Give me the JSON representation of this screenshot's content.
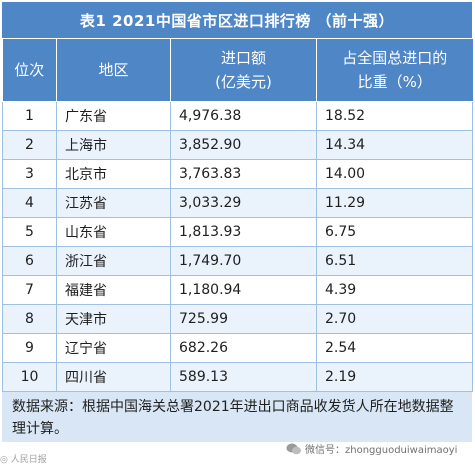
{
  "title": "表1   2021中国省市区进口排行榜 （前十强）",
  "headers": {
    "rank": "位次",
    "region": "地区",
    "import_line1": "进口额",
    "import_line2": "(亿美元)",
    "share_line1": "占全国总进口的",
    "share_line2": "比重（%）"
  },
  "rows": [
    {
      "rank": "1",
      "region": "广东省",
      "imports": "4,976.38",
      "share": "18.52"
    },
    {
      "rank": "2",
      "region": "上海市",
      "imports": "3,852.90",
      "share": "14.34"
    },
    {
      "rank": "3",
      "region": "北京市",
      "imports": "3,763.83",
      "share": "14.00"
    },
    {
      "rank": "4",
      "region": "江苏省",
      "imports": "3,033.29",
      "share": "11.29"
    },
    {
      "rank": "5",
      "region": "山东省",
      "imports": "1,813.93",
      "share": "6.75"
    },
    {
      "rank": "6",
      "region": "浙江省",
      "imports": "1,749.70",
      "share": "6.51"
    },
    {
      "rank": "7",
      "region": "福建省",
      "imports": "1,180.94",
      "share": "4.39"
    },
    {
      "rank": "8",
      "region": "天津市",
      "imports": "725.99",
      "share": "2.70"
    },
    {
      "rank": "9",
      "region": "辽宁省",
      "imports": "682.26",
      "share": "2.54"
    },
    {
      "rank": "10",
      "region": "四川省",
      "imports": "589.13",
      "share": "2.19"
    }
  ],
  "source_note": "数据来源：根据中国海关总署2021年进出口商品收发货人所在地数据整理计算。",
  "watermark_left": "◎ 人民日报",
  "watermark_right": "微信号：zhongguoduiwaimaoyi"
}
